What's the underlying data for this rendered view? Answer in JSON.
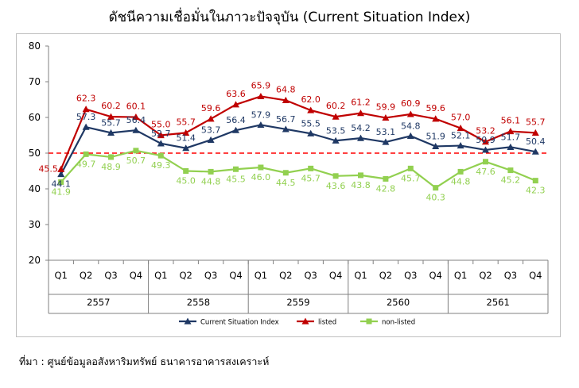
{
  "chart_data": {
    "type": "line",
    "title": "ดัชนีความเชื่อมั่นในภาวะปัจจุบัน (Current Situation Index)",
    "xlabel": "",
    "ylabel": "",
    "ylim": [
      20,
      80
    ],
    "yticks": [
      "20",
      "30",
      "40",
      "50",
      "60",
      "70",
      "80"
    ],
    "grid": false,
    "legend_position": "bottom",
    "reference_line": {
      "value": 50,
      "style": "dashed",
      "color": "#ff0000"
    },
    "categories": [
      "Q1",
      "Q2",
      "Q3",
      "Q4",
      "Q1",
      "Q2",
      "Q3",
      "Q4",
      "Q1",
      "Q2",
      "Q3",
      "Q4",
      "Q1",
      "Q2",
      "Q3",
      "Q4",
      "Q1",
      "Q2",
      "Q3",
      "Q4"
    ],
    "year_groups": [
      {
        "label": "2557",
        "quarters": 4
      },
      {
        "label": "2558",
        "quarters": 4
      },
      {
        "label": "2559",
        "quarters": 4
      },
      {
        "label": "2560",
        "quarters": 4
      },
      {
        "label": "2561",
        "quarters": 4
      }
    ],
    "series": [
      {
        "name": "Current Situation Index",
        "color": "#1f3864",
        "marker": "triangle",
        "values": [
          44.1,
          57.3,
          55.7,
          56.4,
          52.7,
          51.4,
          53.7,
          56.4,
          57.9,
          56.7,
          55.5,
          53.5,
          54.2,
          53.1,
          54.8,
          51.9,
          52.1,
          50.9,
          51.7,
          50.4
        ],
        "labels": [
          "44.1",
          "57.3",
          "55.7",
          "56.4",
          "52.7",
          "51.4",
          "53.7",
          "56.4",
          "57.9",
          "56.7",
          "55.5",
          "53.5",
          "54.2",
          "53.1",
          "54.8",
          "51.9",
          "52.1",
          "50.9",
          "51.7",
          "50.4"
        ]
      },
      {
        "name": "listed",
        "color": "#c00000",
        "marker": "triangle",
        "values": [
          45.5,
          62.3,
          60.2,
          60.1,
          55.0,
          55.7,
          59.6,
          63.6,
          65.9,
          64.8,
          62.0,
          60.2,
          61.2,
          59.9,
          60.9,
          59.6,
          57.0,
          53.2,
          56.1,
          55.7
        ],
        "labels": [
          "45.5",
          "62.3",
          "60.2",
          "60.1",
          "55.0",
          "55.7",
          "59.6",
          "63.6",
          "65.9",
          "64.8",
          "62.0",
          "60.2",
          "61.2",
          "59.9",
          "60.9",
          "59.6",
          "57.0",
          "53.2",
          "56.1",
          "55.7"
        ]
      },
      {
        "name": "non-listed",
        "color": "#92d050",
        "marker": "square",
        "values": [
          41.9,
          49.7,
          48.9,
          50.7,
          49.3,
          45.0,
          44.8,
          45.5,
          46.0,
          44.5,
          45.7,
          43.6,
          43.8,
          42.8,
          45.7,
          40.3,
          44.8,
          47.6,
          45.2,
          42.3
        ],
        "labels": [
          "41.9",
          "49.7",
          "48.9",
          "50.7",
          "49.3",
          "45.0",
          "44.8",
          "45.5",
          "46.0",
          "44.5",
          "45.7",
          "43.6",
          "43.8",
          "42.8",
          "45.7",
          "40.3",
          "44.8",
          "47.6",
          "45.2",
          "42.3"
        ]
      }
    ]
  },
  "source_note": "ที่มา : ศูนย์ข้อมูลอสังหาริมทรัพย์ ธนาคารอาคารสงเคราะห์"
}
